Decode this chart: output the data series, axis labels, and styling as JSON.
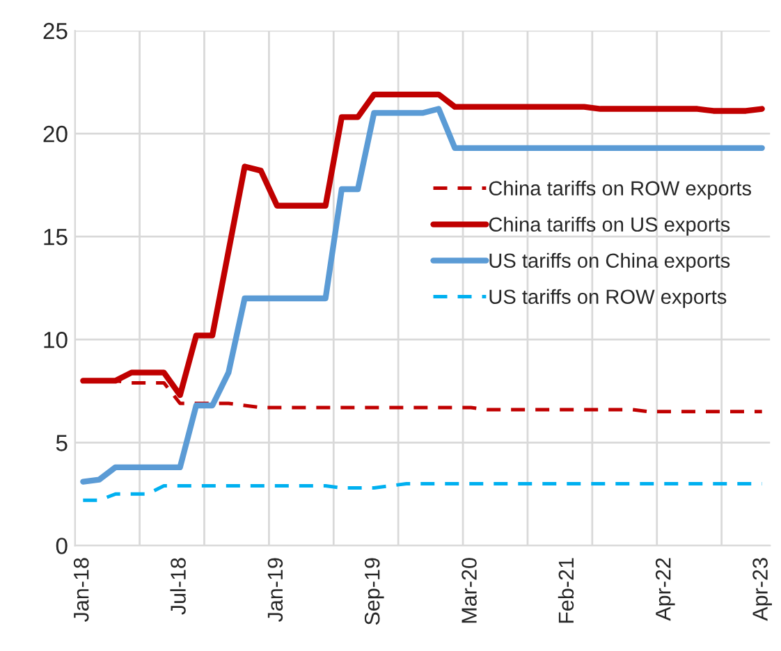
{
  "chart_data": {
    "type": "line",
    "categories": [
      "Jan-18",
      null,
      null,
      null,
      null,
      null,
      "Jul-18",
      null,
      null,
      null,
      null,
      null,
      "Jan-19",
      null,
      null,
      null,
      null,
      null,
      "Sep-19",
      null,
      null,
      null,
      null,
      null,
      "Mar-20",
      null,
      null,
      null,
      null,
      null,
      "Feb-21",
      null,
      null,
      null,
      null,
      null,
      "Apr-22",
      null,
      null,
      null,
      null,
      null,
      "Apr-23"
    ],
    "series": [
      {
        "name": "China tariffs on ROW exports",
        "color": "#c00000",
        "line_style": "dashed",
        "values": [
          8.0,
          8.0,
          8.0,
          7.9,
          7.9,
          7.9,
          6.9,
          6.9,
          6.9,
          6.9,
          6.8,
          6.7,
          6.7,
          6.7,
          6.7,
          6.7,
          6.7,
          6.7,
          6.7,
          6.7,
          6.7,
          6.7,
          6.7,
          6.7,
          6.7,
          6.6,
          6.6,
          6.6,
          6.6,
          6.6,
          6.6,
          6.6,
          6.6,
          6.6,
          6.6,
          6.5,
          6.5,
          6.5,
          6.5,
          6.5,
          6.5,
          6.5,
          6.5
        ]
      },
      {
        "name": "China tariffs on US exports",
        "color": "#c00000",
        "line_style": "solid",
        "values": [
          8.0,
          8.0,
          8.0,
          8.4,
          8.4,
          8.4,
          7.3,
          10.2,
          10.2,
          14.3,
          18.4,
          18.2,
          16.5,
          16.5,
          16.5,
          16.5,
          20.8,
          20.8,
          21.9,
          21.9,
          21.9,
          21.9,
          21.9,
          21.3,
          21.3,
          21.3,
          21.3,
          21.3,
          21.3,
          21.3,
          21.3,
          21.3,
          21.2,
          21.2,
          21.2,
          21.2,
          21.2,
          21.2,
          21.2,
          21.1,
          21.1,
          21.1,
          21.2
        ]
      },
      {
        "name": "US tariffs on China exports",
        "color": "#5b9bd5",
        "line_style": "solid",
        "values": [
          3.1,
          3.2,
          3.8,
          3.8,
          3.8,
          3.8,
          3.8,
          6.8,
          6.8,
          8.4,
          12.0,
          12.0,
          12.0,
          12.0,
          12.0,
          12.0,
          17.3,
          17.3,
          21.0,
          21.0,
          21.0,
          21.0,
          21.2,
          19.3,
          19.3,
          19.3,
          19.3,
          19.3,
          19.3,
          19.3,
          19.3,
          19.3,
          19.3,
          19.3,
          19.3,
          19.3,
          19.3,
          19.3,
          19.3,
          19.3,
          19.3,
          19.3,
          19.3
        ]
      },
      {
        "name": "US tariffs on ROW exports",
        "color": "#00b0f0",
        "line_style": "dashed",
        "values": [
          2.2,
          2.2,
          2.5,
          2.5,
          2.5,
          2.9,
          2.9,
          2.9,
          2.9,
          2.9,
          2.9,
          2.9,
          2.9,
          2.9,
          2.9,
          2.9,
          2.8,
          2.8,
          2.8,
          2.9,
          3.0,
          3.0,
          3.0,
          3.0,
          3.0,
          3.0,
          3.0,
          3.0,
          3.0,
          3.0,
          3.0,
          3.0,
          3.0,
          3.0,
          3.0,
          3.0,
          3.0,
          3.0,
          3.0,
          3.0,
          3.0,
          3.0,
          3.0
        ]
      }
    ],
    "ylim": [
      0,
      25
    ],
    "yticks": [
      0,
      5,
      10,
      15,
      20,
      25
    ],
    "grid": true,
    "legend": "right"
  }
}
